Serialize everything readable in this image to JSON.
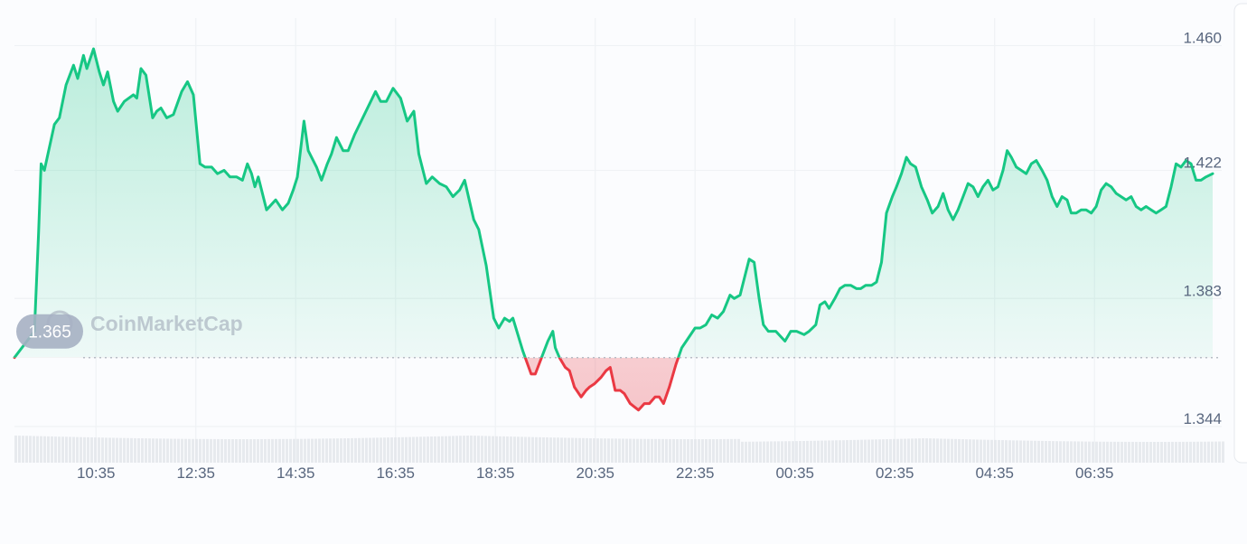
{
  "watermark": "CoinMarketCap",
  "colors": {
    "up": "#16c784",
    "down": "#ea3943",
    "grid": "#eff2f5",
    "axis_text": "#58667e",
    "badge": "#a6b0c3",
    "volume": "#e2e5ea"
  },
  "chart_data": {
    "type": "area",
    "reference_value": 1.365,
    "reference_label": "1.365",
    "ylim": [
      1.333,
      1.4725
    ],
    "yticks": [
      {
        "value": 1.46,
        "label": "1.460"
      },
      {
        "value": 1.422,
        "label": "1.422"
      },
      {
        "value": 1.383,
        "label": "1.383"
      },
      {
        "value": 1.344,
        "label": "1.344"
      }
    ],
    "x_range_minutes": [
      0,
      1440
    ],
    "xticks": [
      {
        "label": "10:35",
        "minute": 98
      },
      {
        "label": "12:35",
        "minute": 218
      },
      {
        "label": "14:35",
        "minute": 338
      },
      {
        "label": "16:35",
        "minute": 458
      },
      {
        "label": "18:35",
        "minute": 578
      },
      {
        "label": "20:35",
        "minute": 698
      },
      {
        "label": "22:35",
        "minute": 818
      },
      {
        "label": "00:35",
        "minute": 938
      },
      {
        "label": "02:35",
        "minute": 1058
      },
      {
        "label": "04:35",
        "minute": 1178
      },
      {
        "label": "06:35",
        "minute": 1298
      }
    ],
    "series": [
      {
        "points": [
          [
            0,
            1.365
          ],
          [
            24,
            1.373
          ],
          [
            29,
            1.403
          ],
          [
            32,
            1.424
          ],
          [
            36,
            1.422
          ],
          [
            48,
            1.436
          ],
          [
            54,
            1.438
          ],
          [
            62,
            1.448
          ],
          [
            71,
            1.454
          ],
          [
            76,
            1.45
          ],
          [
            83,
            1.457
          ],
          [
            87,
            1.453
          ],
          [
            95,
            1.459
          ],
          [
            102,
            1.452
          ],
          [
            107,
            1.448
          ],
          [
            112,
            1.452
          ],
          [
            119,
            1.443
          ],
          [
            124,
            1.44
          ],
          [
            132,
            1.443
          ],
          [
            143,
            1.445
          ],
          [
            147,
            1.444
          ],
          [
            152,
            1.453
          ],
          [
            158,
            1.451
          ],
          [
            166,
            1.438
          ],
          [
            171,
            1.44
          ],
          [
            176,
            1.441
          ],
          [
            183,
            1.438
          ],
          [
            191,
            1.439
          ],
          [
            201,
            1.446
          ],
          [
            208,
            1.449
          ],
          [
            215,
            1.445
          ],
          [
            223,
            1.424
          ],
          [
            229,
            1.423
          ],
          [
            237,
            1.423
          ],
          [
            244,
            1.421
          ],
          [
            252,
            1.422
          ],
          [
            259,
            1.42
          ],
          [
            267,
            1.42
          ],
          [
            274,
            1.419
          ],
          [
            280,
            1.424
          ],
          [
            285,
            1.421
          ],
          [
            289,
            1.417
          ],
          [
            293,
            1.42
          ],
          [
            303,
            1.41
          ],
          [
            314,
            1.413
          ],
          [
            322,
            1.41
          ],
          [
            329,
            1.412
          ],
          [
            335,
            1.416
          ],
          [
            340,
            1.42
          ],
          [
            348,
            1.437
          ],
          [
            353,
            1.428
          ],
          [
            363,
            1.423
          ],
          [
            369,
            1.419
          ],
          [
            376,
            1.424
          ],
          [
            381,
            1.427
          ],
          [
            387,
            1.432
          ],
          [
            395,
            1.428
          ],
          [
            401,
            1.428
          ],
          [
            409,
            1.433
          ],
          [
            434,
            1.446
          ],
          [
            440,
            1.443
          ],
          [
            447,
            1.443
          ],
          [
            455,
            1.447
          ],
          [
            464,
            1.444
          ],
          [
            472,
            1.437
          ],
          [
            480,
            1.44
          ],
          [
            486,
            1.427
          ],
          [
            495,
            1.418
          ],
          [
            502,
            1.42
          ],
          [
            511,
            1.418
          ],
          [
            519,
            1.417
          ],
          [
            527,
            1.414
          ],
          [
            535,
            1.416
          ],
          [
            541,
            1.419
          ],
          [
            552,
            1.407
          ],
          [
            558,
            1.404
          ],
          [
            567,
            1.393
          ],
          [
            576,
            1.377
          ],
          [
            582,
            1.374
          ],
          [
            589,
            1.377
          ],
          [
            595,
            1.376
          ],
          [
            599,
            1.377
          ],
          [
            611,
            1.367
          ],
          [
            621,
            1.36
          ],
          [
            626,
            1.36
          ],
          [
            641,
            1.37
          ],
          [
            647,
            1.373
          ],
          [
            650,
            1.368
          ],
          [
            655,
            1.365
          ],
          [
            662,
            1.362
          ],
          [
            667,
            1.361
          ],
          [
            673,
            1.356
          ],
          [
            681,
            1.353
          ],
          [
            687,
            1.355
          ],
          [
            691,
            1.356
          ],
          [
            697,
            1.357
          ],
          [
            705,
            1.359
          ],
          [
            711,
            1.361
          ],
          [
            716,
            1.362
          ],
          [
            722,
            1.355
          ],
          [
            728,
            1.355
          ],
          [
            733,
            1.354
          ],
          [
            740,
            1.351
          ],
          [
            745,
            1.35
          ],
          [
            750,
            1.349
          ],
          [
            757,
            1.351
          ],
          [
            763,
            1.351
          ],
          [
            770,
            1.353
          ],
          [
            775,
            1.353
          ],
          [
            780,
            1.351
          ],
          [
            787,
            1.356
          ],
          [
            795,
            1.363
          ],
          [
            802,
            1.368
          ],
          [
            810,
            1.371
          ],
          [
            818,
            1.374
          ],
          [
            824,
            1.374
          ],
          [
            831,
            1.375
          ],
          [
            838,
            1.378
          ],
          [
            845,
            1.377
          ],
          [
            852,
            1.379
          ],
          [
            860,
            1.384
          ],
          [
            865,
            1.383
          ],
          [
            872,
            1.384
          ],
          [
            879,
            1.391
          ],
          [
            883,
            1.395
          ],
          [
            889,
            1.394
          ],
          [
            895,
            1.383
          ],
          [
            900,
            1.375
          ],
          [
            906,
            1.373
          ],
          [
            915,
            1.373
          ],
          [
            926,
            1.37
          ],
          [
            933,
            1.373
          ],
          [
            940,
            1.373
          ],
          [
            949,
            1.372
          ],
          [
            955,
            1.373
          ],
          [
            963,
            1.375
          ],
          [
            968,
            1.381
          ],
          [
            974,
            1.382
          ],
          [
            979,
            1.38
          ],
          [
            986,
            1.383
          ],
          [
            992,
            1.386
          ],
          [
            998,
            1.387
          ],
          [
            1005,
            1.387
          ],
          [
            1012,
            1.386
          ],
          [
            1017,
            1.386
          ],
          [
            1023,
            1.387
          ],
          [
            1030,
            1.387
          ],
          [
            1036,
            1.388
          ],
          [
            1042,
            1.394
          ],
          [
            1048,
            1.409
          ],
          [
            1055,
            1.414
          ],
          [
            1060,
            1.417
          ],
          [
            1066,
            1.421
          ],
          [
            1072,
            1.426
          ],
          [
            1077,
            1.424
          ],
          [
            1083,
            1.423
          ],
          [
            1090,
            1.417
          ],
          [
            1097,
            1.413
          ],
          [
            1103,
            1.409
          ],
          [
            1110,
            1.411
          ],
          [
            1116,
            1.415
          ],
          [
            1122,
            1.41
          ],
          [
            1128,
            1.407
          ],
          [
            1134,
            1.41
          ],
          [
            1140,
            1.414
          ],
          [
            1146,
            1.418
          ],
          [
            1152,
            1.417
          ],
          [
            1158,
            1.414
          ],
          [
            1164,
            1.417
          ],
          [
            1170,
            1.419
          ],
          [
            1176,
            1.416
          ],
          [
            1182,
            1.417
          ],
          [
            1188,
            1.422
          ],
          [
            1193,
            1.428
          ],
          [
            1198,
            1.426
          ],
          [
            1204,
            1.423
          ],
          [
            1210,
            1.422
          ],
          [
            1216,
            1.421
          ],
          [
            1222,
            1.424
          ],
          [
            1228,
            1.425
          ],
          [
            1235,
            1.422
          ],
          [
            1241,
            1.419
          ],
          [
            1247,
            1.414
          ],
          [
            1253,
            1.411
          ],
          [
            1259,
            1.414
          ],
          [
            1265,
            1.413
          ],
          [
            1270,
            1.409
          ],
          [
            1276,
            1.409
          ],
          [
            1282,
            1.41
          ],
          [
            1288,
            1.41
          ],
          [
            1294,
            1.409
          ],
          [
            1300,
            1.411
          ],
          [
            1306,
            1.416
          ],
          [
            1312,
            1.418
          ],
          [
            1318,
            1.417
          ],
          [
            1324,
            1.415
          ],
          [
            1330,
            1.414
          ],
          [
            1336,
            1.413
          ],
          [
            1342,
            1.414
          ],
          [
            1348,
            1.411
          ],
          [
            1354,
            1.41
          ],
          [
            1360,
            1.411
          ],
          [
            1366,
            1.41
          ],
          [
            1372,
            1.409
          ],
          [
            1378,
            1.41
          ],
          [
            1384,
            1.411
          ],
          [
            1390,
            1.417
          ],
          [
            1396,
            1.424
          ],
          [
            1402,
            1.423
          ],
          [
            1408,
            1.425
          ],
          [
            1414,
            1.424
          ],
          [
            1420,
            1.419
          ],
          [
            1426,
            1.419
          ],
          [
            1432,
            1.42
          ],
          [
            1440,
            1.421
          ]
        ]
      }
    ]
  }
}
